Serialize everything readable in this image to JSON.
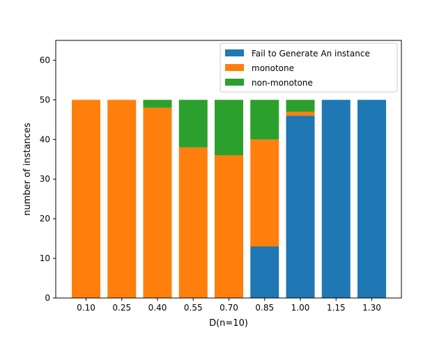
{
  "chart_data": {
    "type": "bar",
    "stacked": true,
    "title": "",
    "xlabel": "D(n=10)",
    "ylabel": "number of instances",
    "categories": [
      "0.10",
      "0.25",
      "0.40",
      "0.55",
      "0.70",
      "0.85",
      "1.00",
      "1.15",
      "1.30"
    ],
    "ylim": [
      0,
      65
    ],
    "yticks": [
      0,
      10,
      20,
      30,
      40,
      50,
      60
    ],
    "grid": false,
    "legend_position": "top-right",
    "series": [
      {
        "name": "Fail to Generate An instance",
        "color": "#1f77b4",
        "values": [
          0,
          0,
          0,
          0,
          0,
          13,
          46,
          50,
          50
        ]
      },
      {
        "name": "monotone",
        "color": "#ff7f0e",
        "values": [
          50,
          50,
          48,
          38,
          36,
          27,
          1,
          0,
          0
        ]
      },
      {
        "name": "non-monotone",
        "color": "#2ca02c",
        "values": [
          0,
          0,
          2,
          12,
          14,
          10,
          3,
          0,
          0
        ]
      }
    ]
  }
}
